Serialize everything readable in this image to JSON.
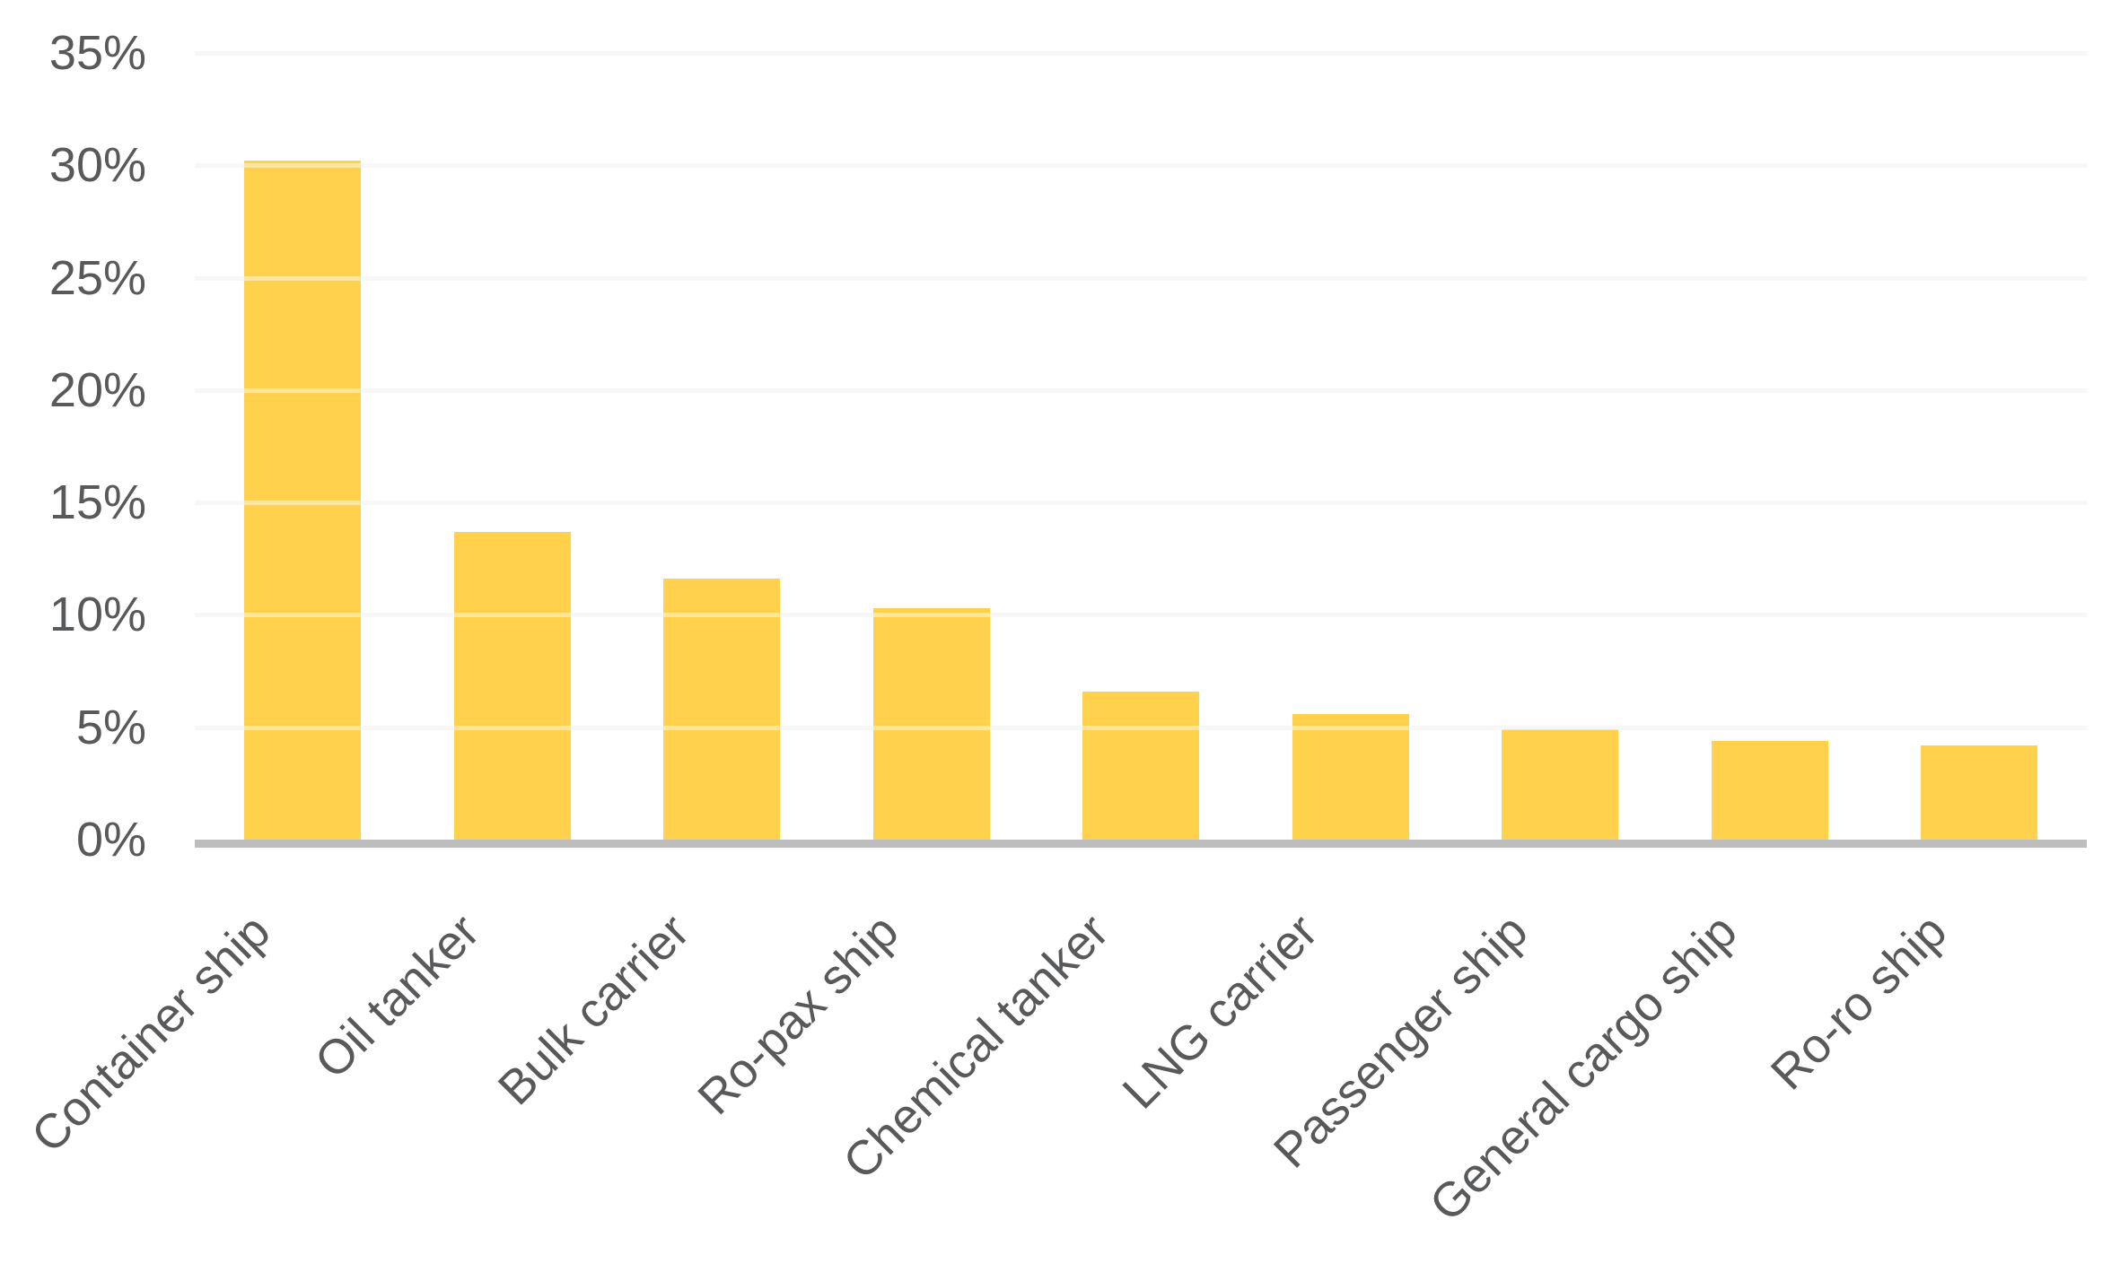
{
  "chart_data": {
    "type": "bar",
    "title": "",
    "xlabel": "",
    "ylabel": "",
    "categories": [
      "Container ship",
      "Oil tanker",
      "Bulk carrier",
      "Ro-pax ship",
      "Chemical tanker",
      "LNG carrier",
      "Passenger ship",
      "General cargo ship",
      "Ro-ro ship"
    ],
    "values": [
      30.2,
      13.7,
      11.6,
      10.3,
      6.6,
      5.6,
      4.9,
      4.4,
      4.2
    ],
    "unit": "%",
    "ylim": [
      0,
      35
    ],
    "ytick_step": 5,
    "ytick_labels": [
      "0%",
      "5%",
      "10%",
      "15%",
      "20%",
      "25%",
      "30%",
      "35%"
    ],
    "grid": true,
    "legend": "none",
    "colors": {
      "bar": "#FFD14C",
      "gridline": "#F1F1F1",
      "gridline_over_bar": "rgba(255,255,255,0.45)",
      "axis_line": "#BDBDBD",
      "label_text": "#58595B",
      "background": "#FFFFFF"
    }
  }
}
